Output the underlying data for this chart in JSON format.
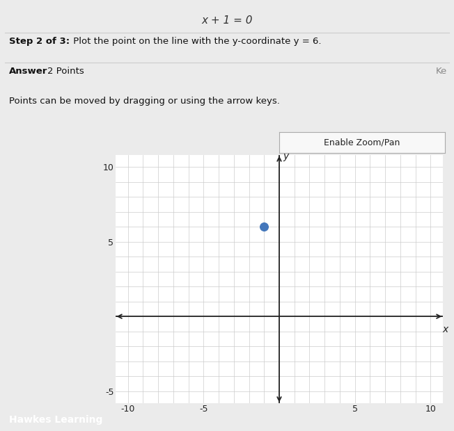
{
  "title": "x + 1 = 0",
  "step_bold": "Step 2 of 3:",
  "step_rest": " Plot the point on the line with the y-coordinate y = 6.",
  "answer_label": "Answer",
  "answer_points": "2 Points",
  "ke_text": "Ke",
  "instruction_text": "Points can be moved by dragging or using the arrow keys.",
  "enable_zoom_text": "Enable Zoom/Pan",
  "hawkes_text": "Hawkes Learning",
  "xlim": [
    -10,
    10
  ],
  "ylim": [
    -5,
    10
  ],
  "point_x": -1,
  "point_y": 6,
  "point_color": "#4477bb",
  "point_size": 70,
  "grid_color": "#cccccc",
  "axis_color": "#222222",
  "bg_color": "#ffffff",
  "page_bg": "#ebebeb",
  "xlabel": "x",
  "ylabel": "y",
  "hawkes_bar_color": "#1e7a6e",
  "hawkes_text_color": "#ffffff",
  "button_bg": "#f8f8f8",
  "button_border": "#aaaaaa",
  "title_fontsize": 11,
  "body_fontsize": 9.5,
  "small_fontsize": 9
}
